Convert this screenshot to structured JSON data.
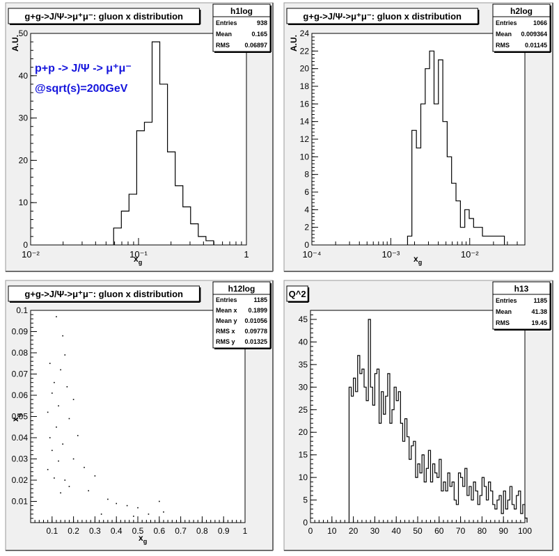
{
  "chart_data": [
    {
      "type": "bar",
      "name": "h1log",
      "title": "g+g->J/Ψ->μ⁺μ⁻: gluon x distribution",
      "xlabel": "x_g",
      "ylabel": "A.U.",
      "x_scale": "log",
      "xlim": [
        0.01,
        1
      ],
      "ylim": [
        0,
        50
      ],
      "x_ticks": [
        "10⁻²",
        "10⁻¹",
        "1"
      ],
      "y_ticks": [
        "0",
        "10",
        "20",
        "30",
        "40",
        "50"
      ],
      "stats": {
        "Entries": "938",
        "Mean": "0.165",
        "RMS": "0.06897"
      },
      "annotations": [
        "p+p -> J/Ψ -> μ⁺μ⁻",
        "@sqrt(s)=200GeV"
      ],
      "bins": [
        [
          0.0588,
          0.0693,
          4
        ],
        [
          0.0693,
          0.0816,
          8
        ],
        [
          0.0816,
          0.0962,
          12
        ],
        [
          0.0962,
          0.1134,
          27
        ],
        [
          0.1134,
          0.1336,
          29
        ],
        [
          0.1336,
          0.1574,
          48
        ],
        [
          0.1574,
          0.1855,
          38
        ],
        [
          0.1855,
          0.2187,
          22
        ],
        [
          0.2187,
          0.2577,
          14
        ],
        [
          0.2577,
          0.3037,
          9
        ],
        [
          0.3037,
          0.3578,
          5
        ],
        [
          0.3578,
          0.4217,
          2
        ],
        [
          0.4217,
          0.4969,
          1
        ]
      ],
      "grid": false,
      "legend": "none"
    },
    {
      "type": "bar",
      "name": "h2log",
      "title": "g+g->J/Ψ->μ⁺μ⁻: gluon x distribution",
      "xlabel": "x_g",
      "ylabel": "A.U.",
      "x_scale": "log",
      "xlim": [
        0.0001,
        0.05
      ],
      "ylim": [
        0,
        24
      ],
      "x_ticks": [
        "10⁻⁴",
        "10⁻³",
        "10⁻²"
      ],
      "y_ticks": [
        "0",
        "2",
        "4",
        "6",
        "8",
        "10",
        "12",
        "14",
        "16",
        "18",
        "20",
        "22",
        "24"
      ],
      "stats": {
        "Entries": "1066",
        "Mean": "0.009364",
        "RMS": "0.01145"
      },
      "bins": [
        [
          0.00163,
          0.00185,
          1
        ],
        [
          0.00185,
          0.00211,
          13
        ],
        [
          0.00211,
          0.0024,
          11
        ],
        [
          0.0024,
          0.00273,
          16
        ],
        [
          0.00273,
          0.0031,
          20
        ],
        [
          0.0031,
          0.00353,
          22
        ],
        [
          0.00353,
          0.00401,
          16
        ],
        [
          0.00401,
          0.00456,
          21
        ],
        [
          0.00456,
          0.00518,
          14
        ],
        [
          0.00518,
          0.00589,
          10
        ],
        [
          0.00589,
          0.0067,
          7
        ],
        [
          0.0067,
          0.00762,
          5
        ],
        [
          0.00762,
          0.00866,
          2
        ],
        [
          0.00866,
          0.00985,
          4
        ],
        [
          0.00985,
          0.0112,
          3
        ],
        [
          0.0112,
          0.0127,
          2
        ],
        [
          0.0127,
          0.0145,
          2
        ],
        [
          0.0145,
          0.0165,
          1
        ],
        [
          0.0165,
          0.0187,
          1
        ],
        [
          0.0187,
          0.0213,
          1
        ],
        [
          0.0213,
          0.0242,
          1
        ],
        [
          0.0242,
          0.0275,
          1
        ]
      ],
      "grid": false,
      "legend": "none"
    },
    {
      "type": "scatter",
      "name": "h12log",
      "title": "g+g->J/Ψ->μ⁺μ⁻: gluon x distribution",
      "xlabel": "x_g",
      "ylabel": "x_g",
      "xlim": [
        0,
        1
      ],
      "ylim": [
        0,
        0.1
      ],
      "x_ticks": [
        "0.1",
        "0.2",
        "0.3",
        "0.4",
        "0.5",
        "0.6",
        "0.7",
        "0.8",
        "0.9",
        "1"
      ],
      "y_ticks": [
        "0.01",
        "0.02",
        "0.03",
        "0.04",
        "0.05",
        "0.06",
        "0.07",
        "0.08",
        "0.09",
        "0.1"
      ],
      "stats": {
        "Entries": "1185",
        "Mean x": "0.1899",
        "Mean y": "0.01056",
        "RMS x": "0.09778",
        "RMS y": "0.01325"
      },
      "points": [
        [
          0.12,
          0.097
        ],
        [
          0.15,
          0.088
        ],
        [
          0.16,
          0.079
        ],
        [
          0.14,
          0.072
        ],
        [
          0.09,
          0.075
        ],
        [
          0.11,
          0.066
        ],
        [
          0.1,
          0.061
        ],
        [
          0.17,
          0.064
        ],
        [
          0.2,
          0.058
        ],
        [
          0.13,
          0.055
        ],
        [
          0.08,
          0.052
        ],
        [
          0.18,
          0.049
        ],
        [
          0.12,
          0.045
        ],
        [
          0.22,
          0.041
        ],
        [
          0.09,
          0.04
        ],
        [
          0.15,
          0.037
        ],
        [
          0.1,
          0.034
        ],
        [
          0.2,
          0.03
        ],
        [
          0.13,
          0.029
        ],
        [
          0.08,
          0.025
        ],
        [
          0.25,
          0.026
        ],
        [
          0.11,
          0.021
        ],
        [
          0.3,
          0.022
        ],
        [
          0.16,
          0.02
        ],
        [
          0.18,
          0.017
        ],
        [
          0.27,
          0.015
        ],
        [
          0.14,
          0.014
        ],
        [
          0.36,
          0.011
        ],
        [
          0.4,
          0.009
        ],
        [
          0.45,
          0.008
        ],
        [
          0.5,
          0.007
        ],
        [
          0.6,
          0.01
        ],
        [
          0.62,
          0.005
        ],
        [
          0.55,
          0.004
        ],
        [
          0.48,
          0.003
        ],
        [
          0.33,
          0.004
        ]
      ],
      "grid": false,
      "legend": "none"
    },
    {
      "type": "bar",
      "name": "h13",
      "title": "Q^2",
      "xlabel": "",
      "ylabel": "",
      "xlim": [
        0,
        100
      ],
      "ylim": [
        0,
        47
      ],
      "x_ticks": [
        "0",
        "10",
        "20",
        "30",
        "40",
        "50",
        "60",
        "70",
        "80",
        "90",
        "100"
      ],
      "y_ticks": [
        "0",
        "5",
        "10",
        "15",
        "20",
        "25",
        "30",
        "35",
        "40",
        "45"
      ],
      "stats": {
        "Entries": "1185",
        "Mean": "41.38",
        "RMS": "19.45"
      },
      "bin_start": 18,
      "bin_width": 1,
      "values": [
        30,
        28,
        32,
        29,
        37,
        33,
        34,
        30,
        27,
        45,
        30,
        26,
        33,
        34,
        22,
        29,
        24,
        28,
        33,
        22,
        25,
        30,
        27,
        29,
        22,
        18,
        23,
        19,
        14,
        17,
        18,
        10,
        13,
        11,
        15,
        9,
        12,
        16,
        9,
        13,
        11,
        10,
        14,
        7,
        9,
        7,
        11,
        8,
        9,
        5,
        4,
        11,
        10,
        8,
        12,
        6,
        8,
        5,
        9,
        7,
        4,
        6,
        10,
        8,
        5,
        9,
        7,
        4,
        3,
        5,
        6,
        2,
        7,
        3,
        5,
        8,
        4,
        3,
        6,
        7,
        2,
        4,
        1
      ],
      "grid": false,
      "legend": "none"
    }
  ]
}
